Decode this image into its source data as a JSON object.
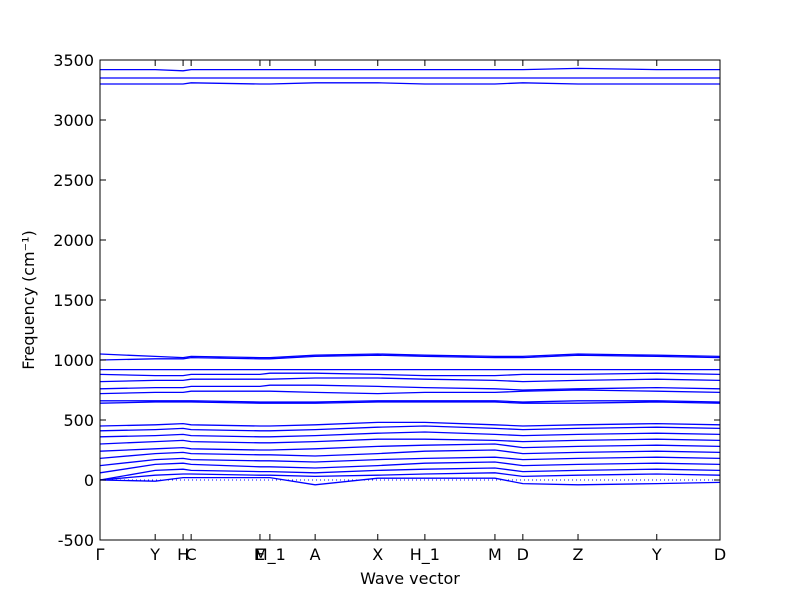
{
  "chart_data": {
    "type": "line",
    "x_label": "Wave vector",
    "y_label": "Frequency (cm⁻¹)",
    "color": "#0000ff",
    "reference_line": 0,
    "xlim": [
      0,
      1
    ],
    "ylim": [
      -500,
      3500
    ],
    "xticks": [
      {
        "value": 0,
        "label": "Γ"
      },
      {
        "value": 0.089,
        "label": "Y"
      },
      {
        "value": 0.134,
        "label": "H"
      },
      {
        "value": 0.147,
        "label": "C"
      },
      {
        "value": 0.258,
        "label": "E"
      },
      {
        "value": 0.274,
        "label": "M_1"
      },
      {
        "value": 0.347,
        "label": "A"
      },
      {
        "value": 0.448,
        "label": "X"
      },
      {
        "value": 0.524,
        "label": "H_1"
      },
      {
        "value": 0.637,
        "label": "M"
      },
      {
        "value": 0.682,
        "label": "D"
      },
      {
        "value": 0.771,
        "label": "Z"
      },
      {
        "value": 0.898,
        "label": "Y"
      },
      {
        "value": 1,
        "label": "D"
      }
    ],
    "yticks": [
      -500,
      0,
      500,
      1000,
      1500,
      2000,
      2500,
      3000,
      3500
    ],
    "x": [
      0,
      0.089,
      0.134,
      0.147,
      0.258,
      0.274,
      0.347,
      0.448,
      0.524,
      0.637,
      0.682,
      0.771,
      0.898,
      1
    ],
    "series": [
      {
        "values": [
          0,
          -10,
          20,
          20,
          20,
          20,
          -40,
          15,
          15,
          15,
          -30,
          -40,
          -30,
          -20
        ]
      },
      {
        "values": [
          0,
          40,
          50,
          50,
          40,
          40,
          30,
          40,
          50,
          60,
          30,
          40,
          50,
          40
        ]
      },
      {
        "values": [
          0,
          80,
          90,
          80,
          70,
          70,
          60,
          80,
          90,
          100,
          70,
          80,
          90,
          80
        ]
      },
      {
        "values": [
          60,
          130,
          140,
          130,
          110,
          110,
          100,
          120,
          140,
          150,
          120,
          130,
          140,
          130
        ]
      },
      {
        "values": [
          120,
          170,
          180,
          170,
          160,
          160,
          150,
          170,
          180,
          190,
          170,
          180,
          190,
          180
        ]
      },
      {
        "values": [
          180,
          220,
          230,
          220,
          210,
          210,
          200,
          220,
          240,
          250,
          220,
          230,
          240,
          230
        ]
      },
      {
        "values": [
          240,
          260,
          270,
          260,
          250,
          250,
          260,
          280,
          290,
          300,
          270,
          280,
          290,
          280
        ]
      },
      {
        "values": [
          300,
          320,
          330,
          320,
          310,
          310,
          320,
          340,
          340,
          330,
          320,
          330,
          340,
          330
        ]
      },
      {
        "values": [
          360,
          370,
          380,
          370,
          360,
          360,
          370,
          390,
          400,
          380,
          370,
          380,
          390,
          380
        ]
      },
      {
        "values": [
          410,
          420,
          430,
          420,
          410,
          410,
          420,
          440,
          450,
          430,
          420,
          430,
          440,
          430
        ]
      },
      {
        "values": [
          450,
          460,
          470,
          460,
          450,
          450,
          460,
          480,
          480,
          460,
          450,
          460,
          470,
          460
        ]
      },
      {
        "values": [
          640,
          650,
          650,
          650,
          640,
          640,
          640,
          650,
          650,
          650,
          640,
          640,
          650,
          640
        ]
      },
      {
        "values": [
          660,
          660,
          660,
          660,
          650,
          650,
          650,
          660,
          660,
          660,
          650,
          660,
          660,
          650
        ]
      },
      {
        "values": [
          720,
          730,
          730,
          740,
          740,
          740,
          730,
          720,
          730,
          730,
          740,
          750,
          740,
          730
        ]
      },
      {
        "values": [
          760,
          770,
          770,
          780,
          780,
          790,
          790,
          780,
          770,
          760,
          750,
          760,
          770,
          760
        ]
      },
      {
        "values": [
          820,
          830,
          830,
          840,
          840,
          840,
          850,
          850,
          840,
          830,
          820,
          830,
          840,
          830
        ]
      },
      {
        "values": [
          880,
          870,
          870,
          880,
          880,
          890,
          890,
          880,
          870,
          870,
          880,
          880,
          890,
          880
        ]
      },
      {
        "values": [
          920,
          920,
          920,
          920,
          920,
          920,
          920,
          920,
          920,
          920,
          920,
          920,
          920,
          920
        ]
      },
      {
        "values": [
          1000,
          1010,
          1010,
          1020,
          1010,
          1010,
          1030,
          1040,
          1030,
          1020,
          1020,
          1040,
          1030,
          1020
        ]
      },
      {
        "values": [
          1050,
          1030,
          1020,
          1030,
          1020,
          1020,
          1040,
          1050,
          1040,
          1030,
          1030,
          1050,
          1040,
          1030
        ]
      },
      {
        "values": [
          3300,
          3300,
          3300,
          3310,
          3300,
          3300,
          3310,
          3310,
          3300,
          3300,
          3310,
          3300,
          3300,
          3300
        ]
      },
      {
        "values": [
          3350,
          3350,
          3350,
          3350,
          3350,
          3350,
          3350,
          3350,
          3350,
          3350,
          3350,
          3350,
          3350,
          3350
        ]
      },
      {
        "values": [
          3420,
          3420,
          3410,
          3420,
          3420,
          3420,
          3420,
          3420,
          3420,
          3420,
          3420,
          3430,
          3420,
          3420
        ]
      }
    ]
  }
}
